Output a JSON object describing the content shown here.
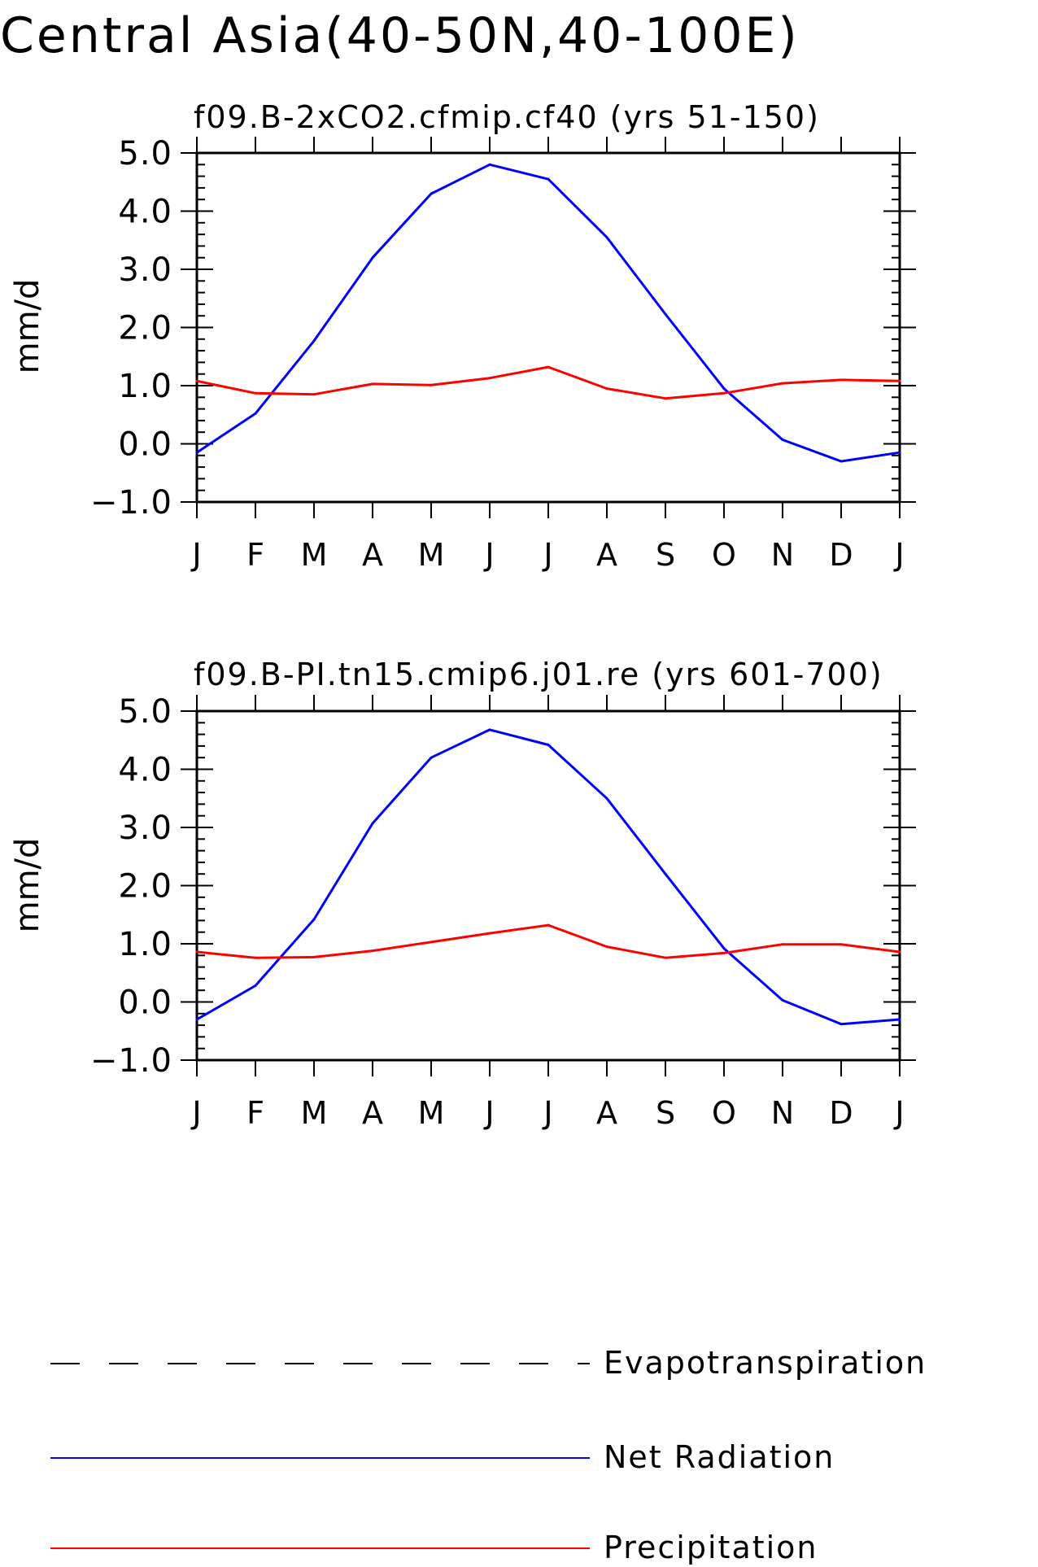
{
  "title": "Central Asia(40-50N,40-100E)",
  "colors": {
    "Net Radiation": "#0000ff",
    "Precipitation": "#ff0000",
    "Evapotranspiration": "#000000",
    "axis": "#000000"
  },
  "legend": [
    {
      "label": "Evapotranspiration",
      "style": "dashed"
    },
    {
      "label": "Net Radiation",
      "style": "solid"
    },
    {
      "label": "Precipitation",
      "style": "solid"
    }
  ],
  "chart_data": [
    {
      "type": "line",
      "title": "f09.B-2xCO2.cfmip.cf40 (yrs 51-150)",
      "ylabel": "mm/d",
      "xlabel": "",
      "categories": [
        "J",
        "F",
        "M",
        "A",
        "M",
        "J",
        "J",
        "A",
        "S",
        "O",
        "N",
        "D",
        "J"
      ],
      "ylim": [
        -1.0,
        5.0
      ],
      "yticks": [
        "-1.0",
        "0.0",
        "1.0",
        "2.0",
        "3.0",
        "4.0",
        "5.0"
      ],
      "series": [
        {
          "name": "Net Radiation",
          "values": [
            -0.15,
            0.52,
            1.77,
            3.2,
            4.3,
            4.8,
            4.55,
            3.55,
            2.23,
            0.95,
            0.07,
            -0.3,
            -0.15
          ]
        },
        {
          "name": "Precipitation",
          "values": [
            1.08,
            0.87,
            0.85,
            1.03,
            1.01,
            1.13,
            1.32,
            0.95,
            0.78,
            0.87,
            1.04,
            1.1,
            1.08
          ]
        }
      ]
    },
    {
      "type": "line",
      "title": "f09.B-PI.tn15.cmip6.j01.re (yrs 601-700)",
      "ylabel": "mm/d",
      "xlabel": "",
      "categories": [
        "J",
        "F",
        "M",
        "A",
        "M",
        "J",
        "J",
        "A",
        "S",
        "O",
        "N",
        "D",
        "J"
      ],
      "ylim": [
        -1.0,
        5.0
      ],
      "yticks": [
        "-1.0",
        "0.0",
        "1.0",
        "2.0",
        "3.0",
        "4.0",
        "5.0"
      ],
      "series": [
        {
          "name": "Net Radiation",
          "values": [
            -0.3,
            0.28,
            1.42,
            3.07,
            4.2,
            4.68,
            4.42,
            3.5,
            2.2,
            0.92,
            0.03,
            -0.38,
            -0.3
          ]
        },
        {
          "name": "Precipitation",
          "values": [
            0.86,
            0.76,
            0.77,
            0.88,
            1.03,
            1.18,
            1.32,
            0.95,
            0.76,
            0.84,
            0.99,
            0.99,
            0.86
          ]
        }
      ]
    }
  ]
}
